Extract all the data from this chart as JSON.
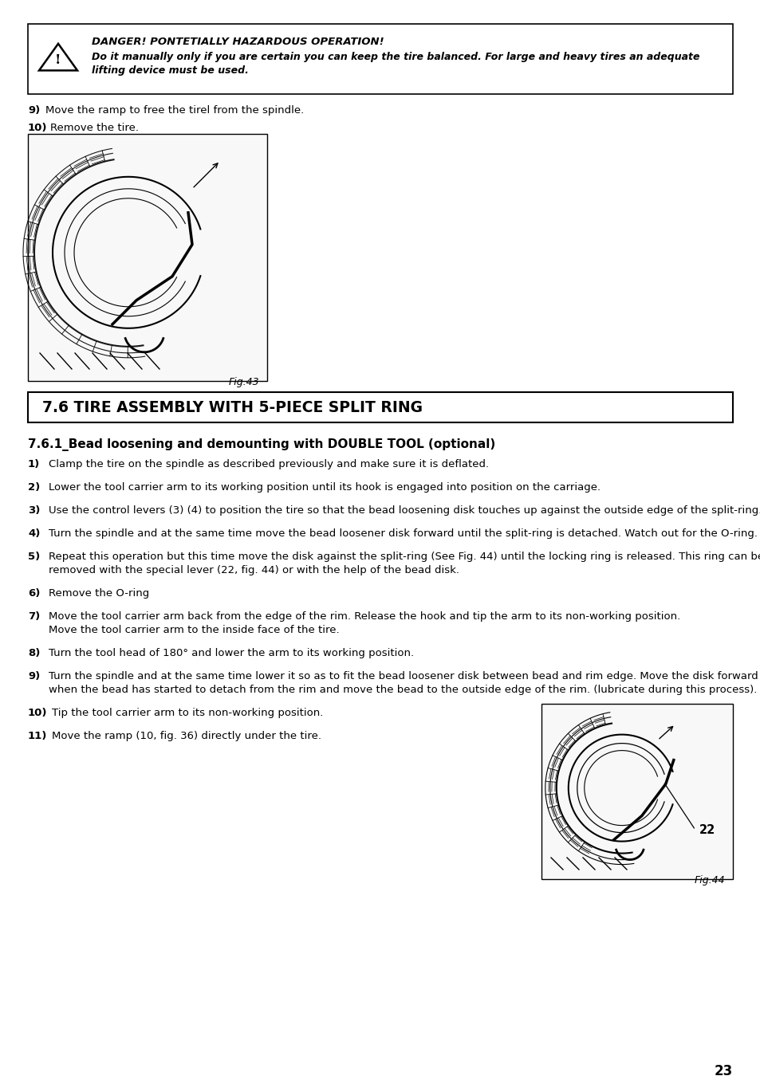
{
  "background_color": "#ffffff",
  "text_color": "#000000",
  "danger_box": {
    "title": "DANGER! PONTETIALLY HAZARDOUS OPERATION!",
    "line1": "Do it manually only if you are certain you can keep the tire balanced. For large and heavy tires an adequate",
    "line2": "lifting device must be used."
  },
  "pre_steps": [
    {
      "num": "9)",
      "bold_num": false,
      "text": "Move the ramp to free the tirel from the spindle."
    },
    {
      "num": "10)",
      "bold_num": true,
      "text": "Remove the tire."
    }
  ],
  "fig43_label": "Fig.43",
  "section_title": "7.6 TIRE ASSEMBLY WITH 5-PIECE SPLIT RING",
  "subsection_title": "7.6.1_Bead loosening and demounting with DOUBLE TOOL (optional)",
  "steps": [
    {
      "num": "1)",
      "text": "Clamp the tire on the spindle as described previously and make sure it is deflated.",
      "lines": 1
    },
    {
      "num": "2)",
      "text": "Lower the tool carrier arm to its working position until its hook is engaged into position on the carriage.",
      "lines": 1
    },
    {
      "num": "3)",
      "text": "Use the control levers (3) (4) to position the tire so that the bead loosening disk touches up against the outside edge of the split-ring.",
      "lines": 1
    },
    {
      "num": "4)",
      "text": "Turn the spindle and at the same time move the bead loosener disk forward until the split-ring is detached. Watch out for the O-ring.",
      "lines": 1
    },
    {
      "num": "5)",
      "text": "Repeat this operation but this time move the disk against the split-ring (See Fig. 44) until the locking ring is released. This ring can be\nremoved with the special lever (22, fig. 44) or with the help of the bead disk.",
      "lines": 2
    },
    {
      "num": "6)",
      "text": "Remove the O-ring",
      "lines": 1
    },
    {
      "num": "7)",
      "text": "Move the tool carrier arm back from the edge of the rim. Release the hook and tip the arm to its non-working position.\nMove the tool carrier arm to the inside face of the tire.",
      "lines": 2
    },
    {
      "num": "8)",
      "text": "Turn the tool head of 180° and lower the arm to its working position.",
      "lines": 1
    },
    {
      "num": "9)",
      "text": "Turn the spindle and at the same time lower it so as to fit the bead loosener disk between bead and rim edge. Move the disk forward only\nwhen the bead has started to detach from the rim and move the bead to the outside edge of the rim. (lubricate during this process).",
      "lines": 2
    },
    {
      "num": "10)",
      "text": "Tip the tool carrier arm to its non-working position.",
      "lines": 1
    },
    {
      "num": "11)",
      "text": "Move the ramp (10, fig. 36) directly under the tire.",
      "lines": 1
    }
  ],
  "fig44_label": "Fig.44",
  "fig44_annotation": "22",
  "page_number": "23"
}
